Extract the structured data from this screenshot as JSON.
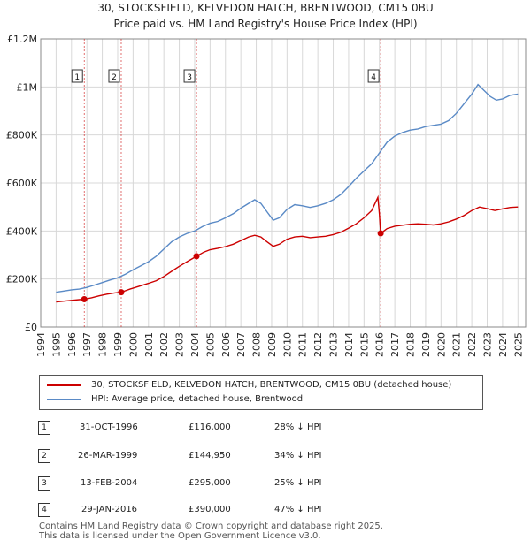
{
  "chart_data": {
    "type": "line",
    "title": "30, STOCKSFIELD, KELVEDON HATCH, BRENTWOOD, CM15 0BU",
    "subtitle": "Price paid vs. HM Land Registry's House Price Index (HPI)",
    "xlim": [
      1994,
      2025.5
    ],
    "ylim": [
      0,
      1200000
    ],
    "x_ticks": [
      "1994",
      "1995",
      "1996",
      "1997",
      "1998",
      "1999",
      "2000",
      "2001",
      "2002",
      "2003",
      "2004",
      "2005",
      "2006",
      "2007",
      "2008",
      "2009",
      "2010",
      "2011",
      "2012",
      "2013",
      "2014",
      "2015",
      "2016",
      "2017",
      "2018",
      "2019",
      "2020",
      "2021",
      "2022",
      "2023",
      "2024",
      "2025"
    ],
    "y_ticks": [
      {
        "value": 0,
        "label": "£0"
      },
      {
        "value": 200000,
        "label": "£200K"
      },
      {
        "value": 400000,
        "label": "£400K"
      },
      {
        "value": 600000,
        "label": "£600K"
      },
      {
        "value": 800000,
        "label": "£800K"
      },
      {
        "value": 1000000,
        "label": "£1M"
      },
      {
        "value": 1200000,
        "label": "£1.2M"
      }
    ],
    "grid": true,
    "series": [
      {
        "name": "30, STOCKSFIELD, KELVEDON HATCH, BRENTWOOD, CM15 0BU (detached house)",
        "color": "#cc0000",
        "points": [
          [
            1995.0,
            105000
          ],
          [
            1995.5,
            108000
          ],
          [
            1996.0,
            111000
          ],
          [
            1996.5,
            114000
          ],
          [
            1996.83,
            116000
          ],
          [
            1997.3,
            122000
          ],
          [
            1997.8,
            130000
          ],
          [
            1998.3,
            137000
          ],
          [
            1998.8,
            142000
          ],
          [
            1999.23,
            144950
          ],
          [
            1999.8,
            158000
          ],
          [
            2000.5,
            172000
          ],
          [
            2001.0,
            182000
          ],
          [
            2001.5,
            193000
          ],
          [
            2002.0,
            210000
          ],
          [
            2002.5,
            232000
          ],
          [
            2003.0,
            253000
          ],
          [
            2003.5,
            272000
          ],
          [
            2004.12,
            295000
          ],
          [
            2004.6,
            312000
          ],
          [
            2005.0,
            322000
          ],
          [
            2005.5,
            328000
          ],
          [
            2006.0,
            335000
          ],
          [
            2006.5,
            345000
          ],
          [
            2007.0,
            360000
          ],
          [
            2007.5,
            375000
          ],
          [
            2007.9,
            382000
          ],
          [
            2008.3,
            375000
          ],
          [
            2008.7,
            355000
          ],
          [
            2009.1,
            336000
          ],
          [
            2009.5,
            345000
          ],
          [
            2010.0,
            366000
          ],
          [
            2010.5,
            375000
          ],
          [
            2011.0,
            378000
          ],
          [
            2011.5,
            372000
          ],
          [
            2012.0,
            375000
          ],
          [
            2012.5,
            378000
          ],
          [
            2013.0,
            385000
          ],
          [
            2013.5,
            395000
          ],
          [
            2014.0,
            412000
          ],
          [
            2014.5,
            430000
          ],
          [
            2015.0,
            455000
          ],
          [
            2015.5,
            485000
          ],
          [
            2015.9,
            540000
          ],
          [
            2016.0,
            470000
          ],
          [
            2016.08,
            390000
          ],
          [
            2016.5,
            410000
          ],
          [
            2017.0,
            420000
          ],
          [
            2017.5,
            424000
          ],
          [
            2018.0,
            428000
          ],
          [
            2018.5,
            430000
          ],
          [
            2019.0,
            428000
          ],
          [
            2019.5,
            425000
          ],
          [
            2020.0,
            430000
          ],
          [
            2020.5,
            438000
          ],
          [
            2021.0,
            450000
          ],
          [
            2021.5,
            465000
          ],
          [
            2022.0,
            485000
          ],
          [
            2022.5,
            500000
          ],
          [
            2023.0,
            493000
          ],
          [
            2023.5,
            485000
          ],
          [
            2024.0,
            492000
          ],
          [
            2024.5,
            498000
          ],
          [
            2025.0,
            500000
          ]
        ]
      },
      {
        "name": "HPI: Average price, detached house, Brentwood",
        "color": "#5a8ac6",
        "points": [
          [
            1995.0,
            145000
          ],
          [
            1995.5,
            150000
          ],
          [
            1996.0,
            155000
          ],
          [
            1996.5,
            158000
          ],
          [
            1997.0,
            165000
          ],
          [
            1997.5,
            175000
          ],
          [
            1998.0,
            185000
          ],
          [
            1998.5,
            196000
          ],
          [
            1999.0,
            205000
          ],
          [
            1999.5,
            220000
          ],
          [
            2000.0,
            238000
          ],
          [
            2000.5,
            255000
          ],
          [
            2001.0,
            272000
          ],
          [
            2001.5,
            295000
          ],
          [
            2002.0,
            325000
          ],
          [
            2002.5,
            355000
          ],
          [
            2003.0,
            375000
          ],
          [
            2003.5,
            390000
          ],
          [
            2004.0,
            400000
          ],
          [
            2004.5,
            418000
          ],
          [
            2005.0,
            432000
          ],
          [
            2005.5,
            440000
          ],
          [
            2006.0,
            455000
          ],
          [
            2006.5,
            472000
          ],
          [
            2007.0,
            495000
          ],
          [
            2007.5,
            515000
          ],
          [
            2007.9,
            530000
          ],
          [
            2008.3,
            515000
          ],
          [
            2008.7,
            480000
          ],
          [
            2009.1,
            445000
          ],
          [
            2009.5,
            455000
          ],
          [
            2010.0,
            490000
          ],
          [
            2010.5,
            510000
          ],
          [
            2011.0,
            505000
          ],
          [
            2011.5,
            498000
          ],
          [
            2012.0,
            505000
          ],
          [
            2012.5,
            515000
          ],
          [
            2013.0,
            530000
          ],
          [
            2013.5,
            552000
          ],
          [
            2014.0,
            585000
          ],
          [
            2014.5,
            620000
          ],
          [
            2015.0,
            650000
          ],
          [
            2015.5,
            680000
          ],
          [
            2016.0,
            725000
          ],
          [
            2016.5,
            770000
          ],
          [
            2017.0,
            795000
          ],
          [
            2017.5,
            810000
          ],
          [
            2018.0,
            820000
          ],
          [
            2018.5,
            825000
          ],
          [
            2019.0,
            835000
          ],
          [
            2019.5,
            840000
          ],
          [
            2020.0,
            845000
          ],
          [
            2020.5,
            860000
          ],
          [
            2021.0,
            890000
          ],
          [
            2021.5,
            930000
          ],
          [
            2022.0,
            970000
          ],
          [
            2022.4,
            1010000
          ],
          [
            2022.8,
            985000
          ],
          [
            2023.2,
            960000
          ],
          [
            2023.6,
            945000
          ],
          [
            2024.0,
            950000
          ],
          [
            2024.5,
            965000
          ],
          [
            2025.0,
            970000
          ]
        ]
      }
    ],
    "sales": [
      {
        "marker": "1",
        "x": 1996.83,
        "price": 116000,
        "date": "31-OCT-1996",
        "price_label": "£116,000",
        "hpi_diff": "28% ↓ HPI"
      },
      {
        "marker": "2",
        "x": 1999.23,
        "price": 144950,
        "date": "26-MAR-1999",
        "price_label": "£144,950",
        "hpi_diff": "34% ↓ HPI"
      },
      {
        "marker": "3",
        "x": 2004.12,
        "price": 295000,
        "date": "13-FEB-2004",
        "price_label": "£295,000",
        "hpi_diff": "25% ↓ HPI"
      },
      {
        "marker": "4",
        "x": 2016.08,
        "price": 390000,
        "date": "29-JAN-2016",
        "price_label": "£390,000",
        "hpi_diff": "47% ↓ HPI"
      }
    ],
    "legend": [
      {
        "label": "30, STOCKSFIELD, KELVEDON HATCH, BRENTWOOD, CM15 0BU (detached house)",
        "color": "#cc0000"
      },
      {
        "label": "HPI: Average price, detached house, Brentwood",
        "color": "#5a8ac6"
      }
    ]
  },
  "footer": {
    "line1": "Contains HM Land Registry data © Crown copyright and database right 2025.",
    "line2": "This data is licensed under the Open Government Licence v3.0."
  }
}
